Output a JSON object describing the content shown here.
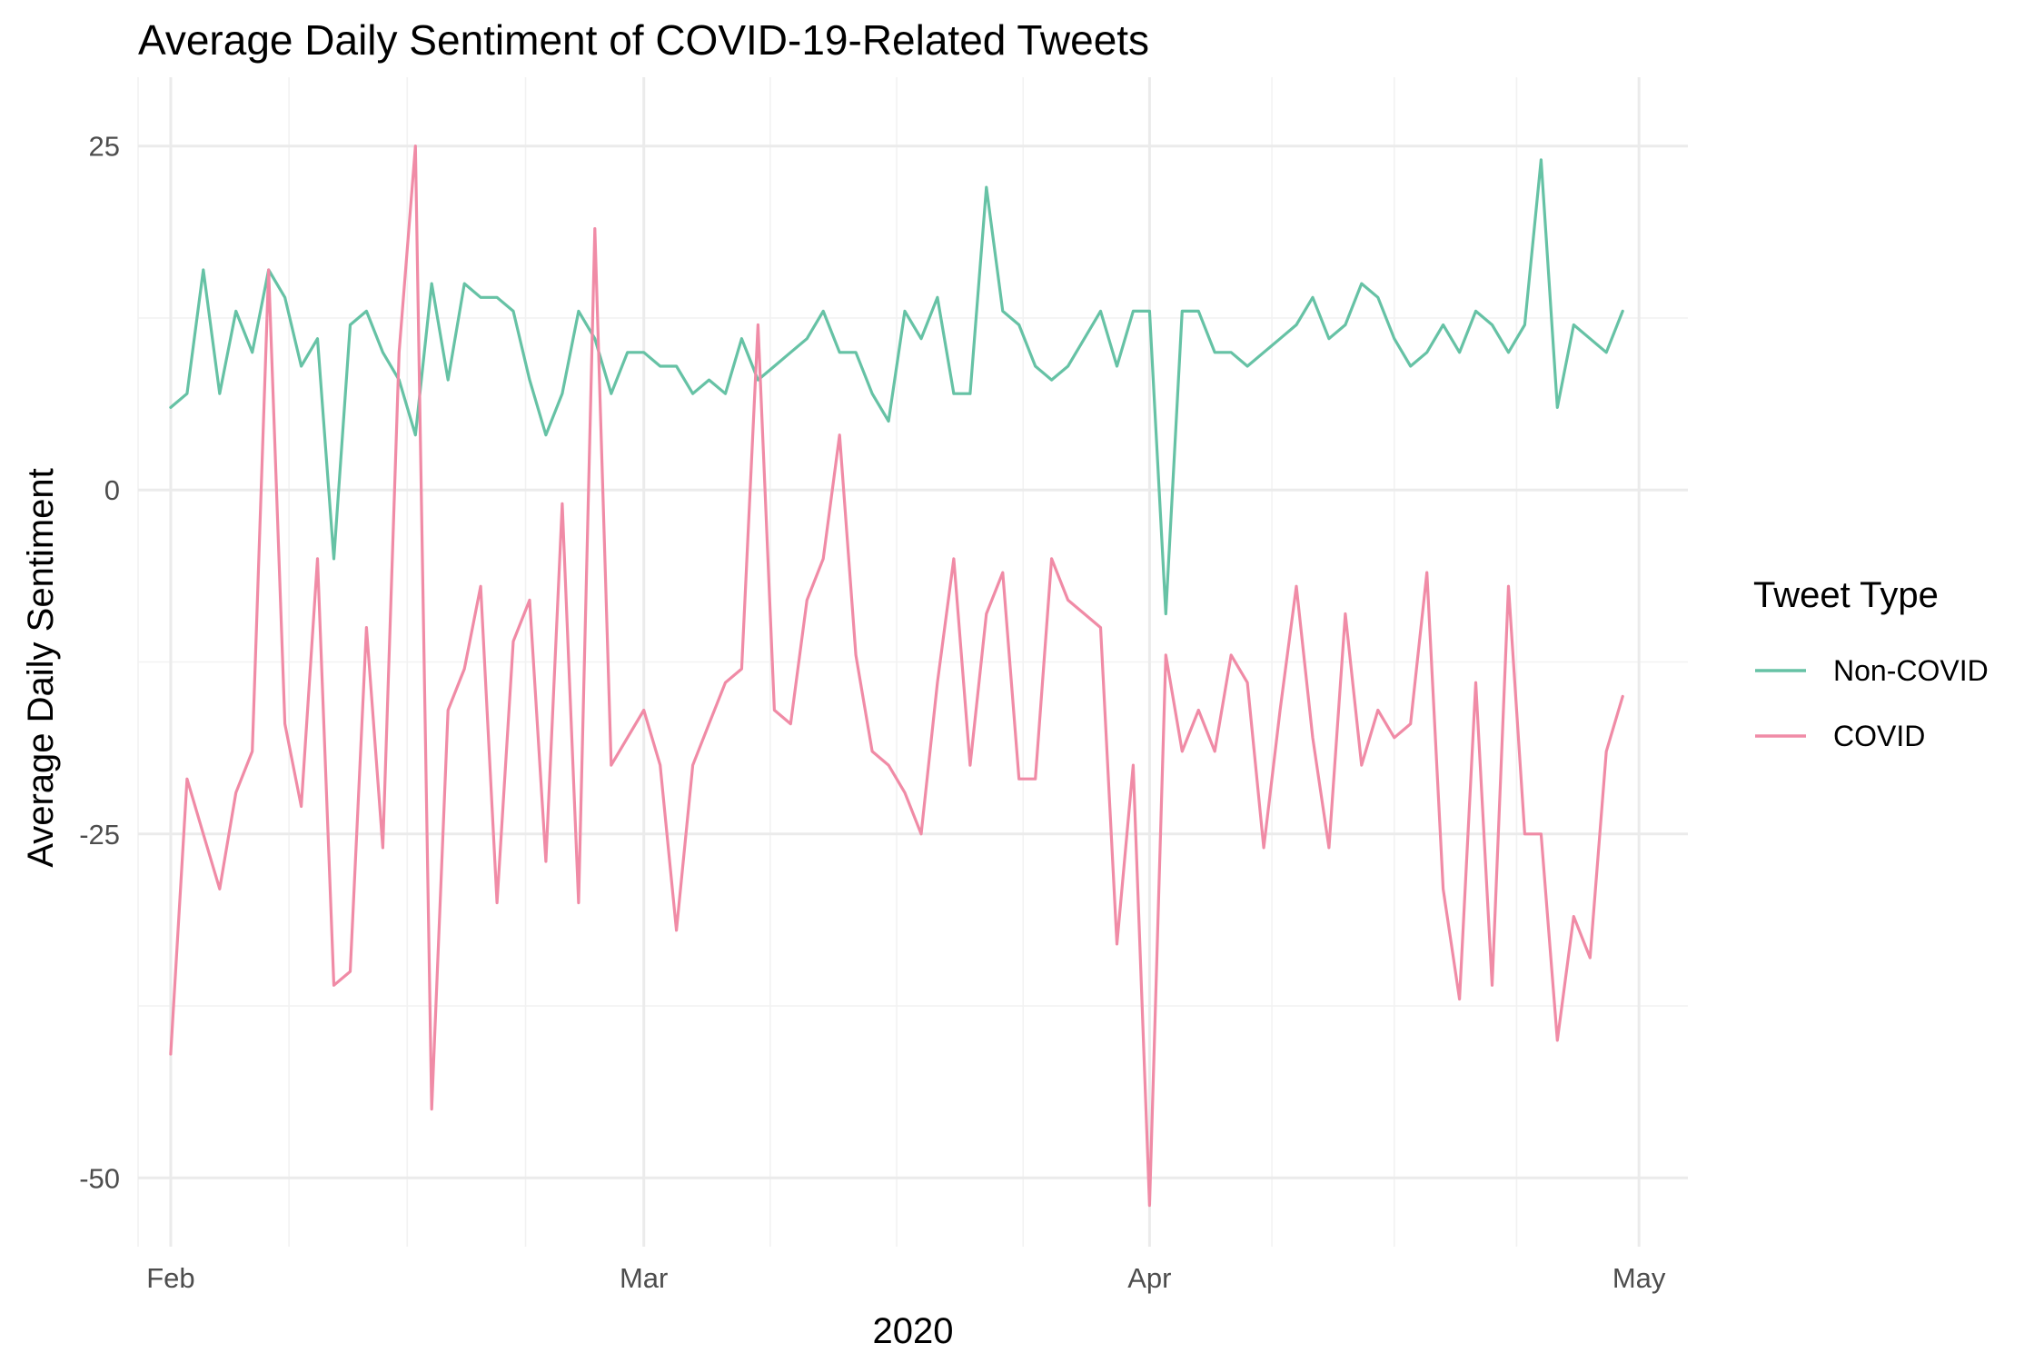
{
  "chart_data": {
    "type": "line",
    "title": "Average Daily Sentiment of COVID-19-Related Tweets",
    "xlabel": "2020",
    "ylabel": "Average Daily Sentiment",
    "x_tick_labels": [
      "Feb",
      "Mar",
      "Apr",
      "May"
    ],
    "x_tick_dates": [
      "2020-02-01",
      "2020-03-01",
      "2020-04-01",
      "2020-05-01"
    ],
    "y_ticks": [
      25,
      0,
      -25,
      -50
    ],
    "y_tick_labels": [
      "25",
      "0",
      "-25",
      "-50"
    ],
    "xlim": [
      "2020-01-30",
      "2020-05-04"
    ],
    "ylim": [
      -55,
      30
    ],
    "grid": true,
    "legend": {
      "title": "Tweet Type",
      "position": "right"
    },
    "x": [
      "2020-02-01",
      "2020-02-02",
      "2020-02-03",
      "2020-02-04",
      "2020-02-05",
      "2020-02-06",
      "2020-02-07",
      "2020-02-08",
      "2020-02-09",
      "2020-02-10",
      "2020-02-11",
      "2020-02-12",
      "2020-02-13",
      "2020-02-14",
      "2020-02-15",
      "2020-02-16",
      "2020-02-17",
      "2020-02-18",
      "2020-02-19",
      "2020-02-20",
      "2020-02-21",
      "2020-02-22",
      "2020-02-23",
      "2020-02-24",
      "2020-02-25",
      "2020-02-26",
      "2020-02-27",
      "2020-02-28",
      "2020-02-29",
      "2020-03-01",
      "2020-03-02",
      "2020-03-03",
      "2020-03-04",
      "2020-03-05",
      "2020-03-06",
      "2020-03-07",
      "2020-03-08",
      "2020-03-09",
      "2020-03-10",
      "2020-03-11",
      "2020-03-12",
      "2020-03-13",
      "2020-03-14",
      "2020-03-15",
      "2020-03-16",
      "2020-03-17",
      "2020-03-18",
      "2020-03-19",
      "2020-03-20",
      "2020-03-21",
      "2020-03-22",
      "2020-03-23",
      "2020-03-24",
      "2020-03-25",
      "2020-03-26",
      "2020-03-27",
      "2020-03-28",
      "2020-03-29",
      "2020-03-30",
      "2020-03-31",
      "2020-04-01",
      "2020-04-02",
      "2020-04-03",
      "2020-04-04",
      "2020-04-05",
      "2020-04-06",
      "2020-04-07",
      "2020-04-08",
      "2020-04-09",
      "2020-04-10",
      "2020-04-11",
      "2020-04-12",
      "2020-04-13",
      "2020-04-14",
      "2020-04-15",
      "2020-04-16",
      "2020-04-17",
      "2020-04-18",
      "2020-04-19",
      "2020-04-20",
      "2020-04-21",
      "2020-04-22",
      "2020-04-23",
      "2020-04-24",
      "2020-04-25",
      "2020-04-26",
      "2020-04-27",
      "2020-04-28",
      "2020-04-29",
      "2020-04-30"
    ],
    "series": [
      {
        "name": "Non-COVID",
        "color": "#66c2a5",
        "values": [
          6,
          7,
          16,
          7,
          13,
          10,
          16,
          14,
          9,
          11,
          -5,
          12,
          13,
          10,
          8,
          4,
          15,
          8,
          15,
          14,
          14,
          13,
          8,
          4,
          7,
          13,
          11,
          7,
          10,
          10,
          9,
          9,
          7,
          8,
          7,
          11,
          8,
          9,
          10,
          11,
          13,
          10,
          10,
          7,
          5,
          13,
          11,
          14,
          7,
          7,
          22,
          13,
          12,
          9,
          8,
          9,
          11,
          13,
          9,
          13,
          13,
          -9,
          13,
          13,
          10,
          10,
          9,
          10,
          11,
          12,
          14,
          11,
          12,
          15,
          14,
          11,
          9,
          10,
          12,
          10,
          13,
          12,
          10,
          12,
          24,
          6,
          12,
          11,
          10,
          13
        ]
      },
      {
        "name": "COVID",
        "color": "#f08ba6",
        "values": [
          -41,
          -21,
          -25,
          -29,
          -22,
          -19,
          16,
          -17,
          -23,
          -5,
          -36,
          -35,
          -10,
          -26,
          10,
          25,
          -45,
          -16,
          -13,
          -7,
          -30,
          -11,
          -8,
          -27,
          -1,
          -30,
          19,
          -20,
          -18,
          -16,
          -20,
          -32,
          -20,
          -17,
          -14,
          -13,
          12,
          -16,
          -17,
          -8,
          -5,
          4,
          -12,
          -19,
          -20,
          -22,
          -25,
          -14,
          -5,
          -20,
          -9,
          -6,
          -21,
          -21,
          -5,
          -8,
          -9,
          -10,
          -33,
          -20,
          -52,
          -12,
          -19,
          -16,
          -19,
          -12,
          -14,
          -26,
          -16,
          -7,
          -18,
          -26,
          -9,
          -20,
          -16,
          -18,
          -17,
          -6,
          -29,
          -37,
          -14,
          -36,
          -7,
          -25,
          -25,
          -40,
          -31,
          -34,
          -19,
          -15
        ]
      }
    ]
  }
}
